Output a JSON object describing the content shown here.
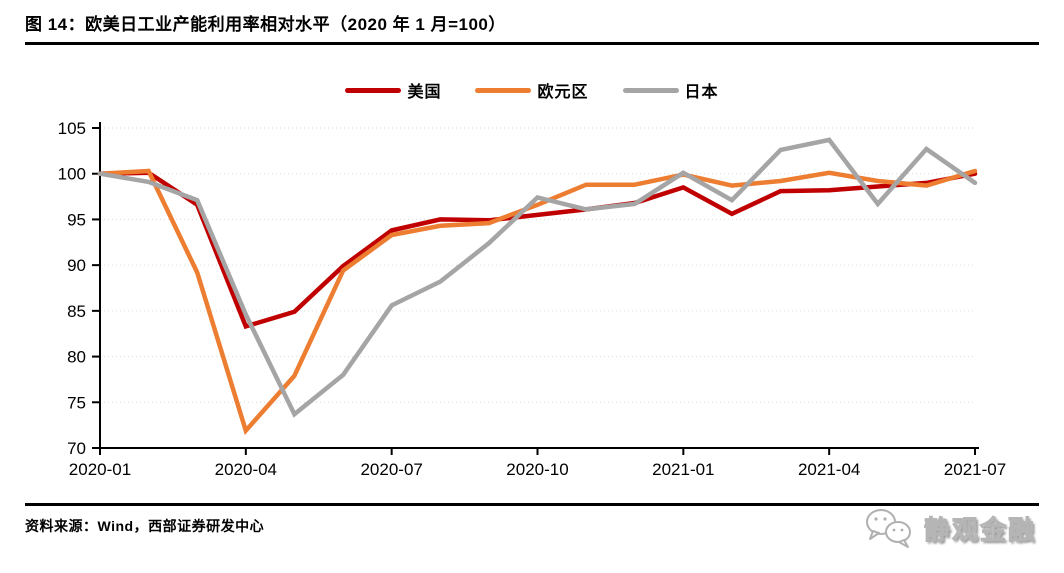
{
  "title": "图 14：欧美日工业产能利用率相对水平（2020 年 1 月=100）",
  "source": "资料来源：Wind，西部证券研发中心",
  "logo": {
    "icon": "wechat-icon",
    "text": "静观金融"
  },
  "colors": {
    "us": "#c00000",
    "euro": "#ed7d31",
    "japan": "#a5a5a5",
    "grid": "#d9d9d9",
    "axis": "#000000",
    "rule": "#000000"
  },
  "chart_data": {
    "type": "line",
    "title": "欧美日工业产能利用率相对水平（2020 年 1 月=100）",
    "x": [
      "2020-01",
      "2020-02",
      "2020-03",
      "2020-04",
      "2020-05",
      "2020-06",
      "2020-07",
      "2020-08",
      "2020-09",
      "2020-10",
      "2020-11",
      "2020-12",
      "2021-01",
      "2021-02",
      "2021-03",
      "2021-04",
      "2021-05",
      "2021-06",
      "2021-07"
    ],
    "x_tick_labels": [
      "2020-01",
      "2020-04",
      "2020-07",
      "2020-10",
      "2021-01",
      "2021-04",
      "2021-07"
    ],
    "x_tick_indices": [
      0,
      3,
      6,
      9,
      12,
      15,
      18
    ],
    "y_ticks": [
      70,
      75,
      80,
      85,
      90,
      95,
      100,
      105
    ],
    "ylim": [
      70,
      105
    ],
    "grid": "dotted-horizontal",
    "legend_position": "top-center",
    "series": [
      {
        "name": "美国",
        "color": "#c00000",
        "values": [
          100.0,
          100.1,
          96.6,
          83.3,
          84.9,
          89.9,
          93.8,
          95.0,
          94.9,
          95.5,
          96.1,
          96.8,
          98.5,
          95.6,
          98.1,
          98.2,
          98.6,
          99.0,
          100.0
        ]
      },
      {
        "name": "欧元区",
        "color": "#ed7d31",
        "values": [
          100.0,
          100.3,
          89.2,
          71.9,
          77.9,
          89.4,
          93.3,
          94.3,
          94.6,
          96.6,
          98.8,
          98.8,
          99.9,
          98.7,
          99.2,
          100.1,
          99.2,
          98.7,
          100.3
        ]
      },
      {
        "name": "日本",
        "color": "#a5a5a5",
        "values": [
          100.0,
          99.1,
          97.1,
          84.6,
          73.7,
          78.0,
          85.6,
          88.2,
          92.4,
          97.4,
          96.1,
          96.7,
          100.1,
          97.1,
          102.6,
          103.7,
          96.7,
          102.7,
          99.0
        ]
      }
    ]
  }
}
